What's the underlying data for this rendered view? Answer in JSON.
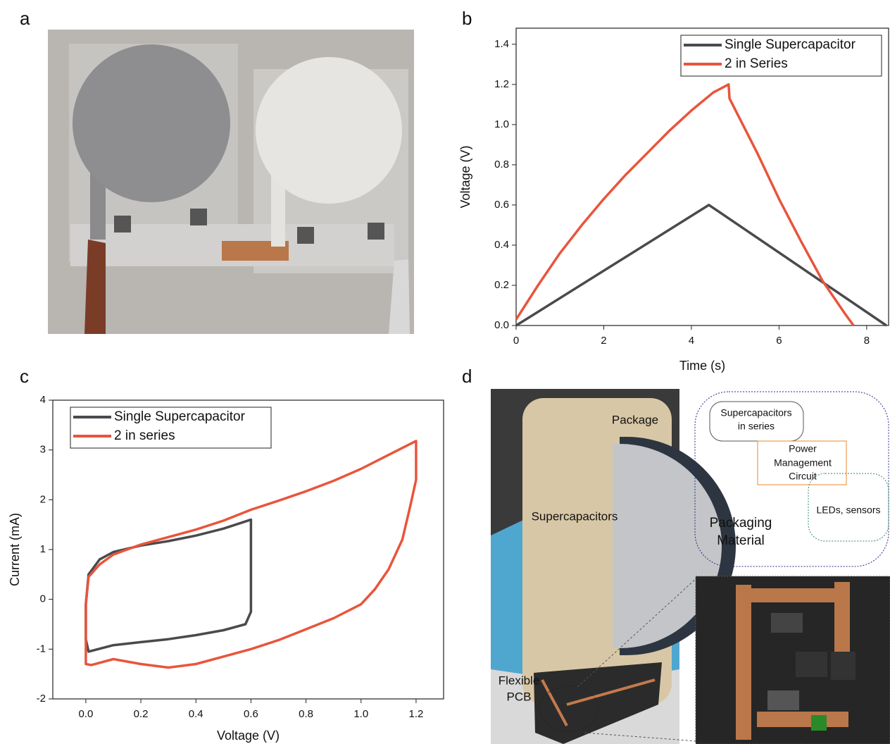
{
  "panel_labels": [
    "a",
    "b",
    "c",
    "d"
  ],
  "chart_data": [
    {
      "type": "line",
      "xlabel": "Time (s)",
      "ylabel": "Voltage (V)",
      "xlim": [
        0,
        8.5
      ],
      "ylim": [
        0,
        1.48
      ],
      "xticks": [
        0,
        2,
        4,
        6,
        8
      ],
      "yticks": [
        {
          "value": 0,
          "label": "0.0"
        },
        0.2,
        0.4,
        0.6,
        0.8,
        {
          "value": 1,
          "label": "1.0"
        },
        1.2,
        1.4
      ],
      "legend": "upper right",
      "series": [
        {
          "name": "Single Supercapacitor",
          "color": "#4a4a4e",
          "x": [
            0,
            4.4,
            8.45
          ],
          "values": [
            0,
            0.6,
            0
          ]
        },
        {
          "name": "2 in Series",
          "color": "#e8553c",
          "x": [
            0,
            0.5,
            1,
            1.5,
            2,
            2.5,
            3,
            3.5,
            4,
            4.5,
            4.85,
            4.87,
            5.5,
            6,
            6.5,
            7,
            7.5,
            7.7
          ],
          "values": [
            0.03,
            0.2,
            0.36,
            0.5,
            0.63,
            0.75,
            0.86,
            0.97,
            1.07,
            1.16,
            1.2,
            1.13,
            0.86,
            0.63,
            0.42,
            0.22,
            0.06,
            0
          ]
        }
      ]
    },
    {
      "type": "line",
      "xlabel": "Voltage (V)",
      "ylabel": "Current (mA)",
      "xlim": [
        -0.12,
        1.3
      ],
      "ylim": [
        -2,
        4
      ],
      "xticks": [
        {
          "value": 0,
          "label": "0.0"
        },
        0.2,
        0.4,
        0.6,
        0.8,
        {
          "value": 1,
          "label": "1.0"
        },
        1.2
      ],
      "yticks": [
        -2,
        -1,
        0,
        1,
        2,
        3,
        4
      ],
      "legend": "upper left",
      "series": [
        {
          "name": "Single Supercapacitor",
          "color": "#4a4a4e",
          "x": [
            0,
            0.01,
            0.05,
            0.1,
            0.2,
            0.3,
            0.4,
            0.5,
            0.6,
            0.6,
            0.58,
            0.5,
            0.4,
            0.3,
            0.2,
            0.1,
            0.01,
            0,
            0
          ],
          "values": [
            -0.1,
            0.5,
            0.8,
            0.95,
            1.08,
            1.17,
            1.28,
            1.42,
            1.6,
            -0.25,
            -0.5,
            -0.62,
            -0.72,
            -0.8,
            -0.86,
            -0.92,
            -1.05,
            -0.8,
            -0.1
          ]
        },
        {
          "name": "2 in series",
          "color": "#e8553c",
          "x": [
            0,
            0.01,
            0.05,
            0.1,
            0.2,
            0.3,
            0.4,
            0.5,
            0.6,
            0.7,
            0.8,
            0.9,
            1,
            1.1,
            1.2,
            1.2,
            1.18,
            1.15,
            1.1,
            1.05,
            1,
            0.9,
            0.8,
            0.7,
            0.6,
            0.5,
            0.4,
            0.3,
            0.2,
            0.1,
            0.02,
            0,
            0
          ],
          "values": [
            -0.1,
            0.45,
            0.7,
            0.9,
            1.1,
            1.25,
            1.4,
            1.58,
            1.8,
            1.98,
            2.17,
            2.38,
            2.62,
            2.9,
            3.18,
            2.4,
            1.9,
            1.2,
            0.6,
            0.2,
            -0.1,
            -0.38,
            -0.6,
            -0.82,
            -1,
            -1.15,
            -1.3,
            -1.37,
            -1.3,
            -1.2,
            -1.32,
            -1.3,
            -0.1
          ]
        }
      ]
    }
  ],
  "photo_labels": {
    "package": "Package",
    "supercapacitors": "Supercapacitors",
    "flexible_pcb": [
      "Flexible",
      "PCB"
    ]
  },
  "diagram": {
    "supercapacitors": [
      "Supercapacitors",
      "in series"
    ],
    "power_management": [
      "Power",
      "Management",
      "Circuit"
    ],
    "leds": "LEDs, sensors",
    "packaging": [
      "Packaging",
      "Material"
    ]
  }
}
